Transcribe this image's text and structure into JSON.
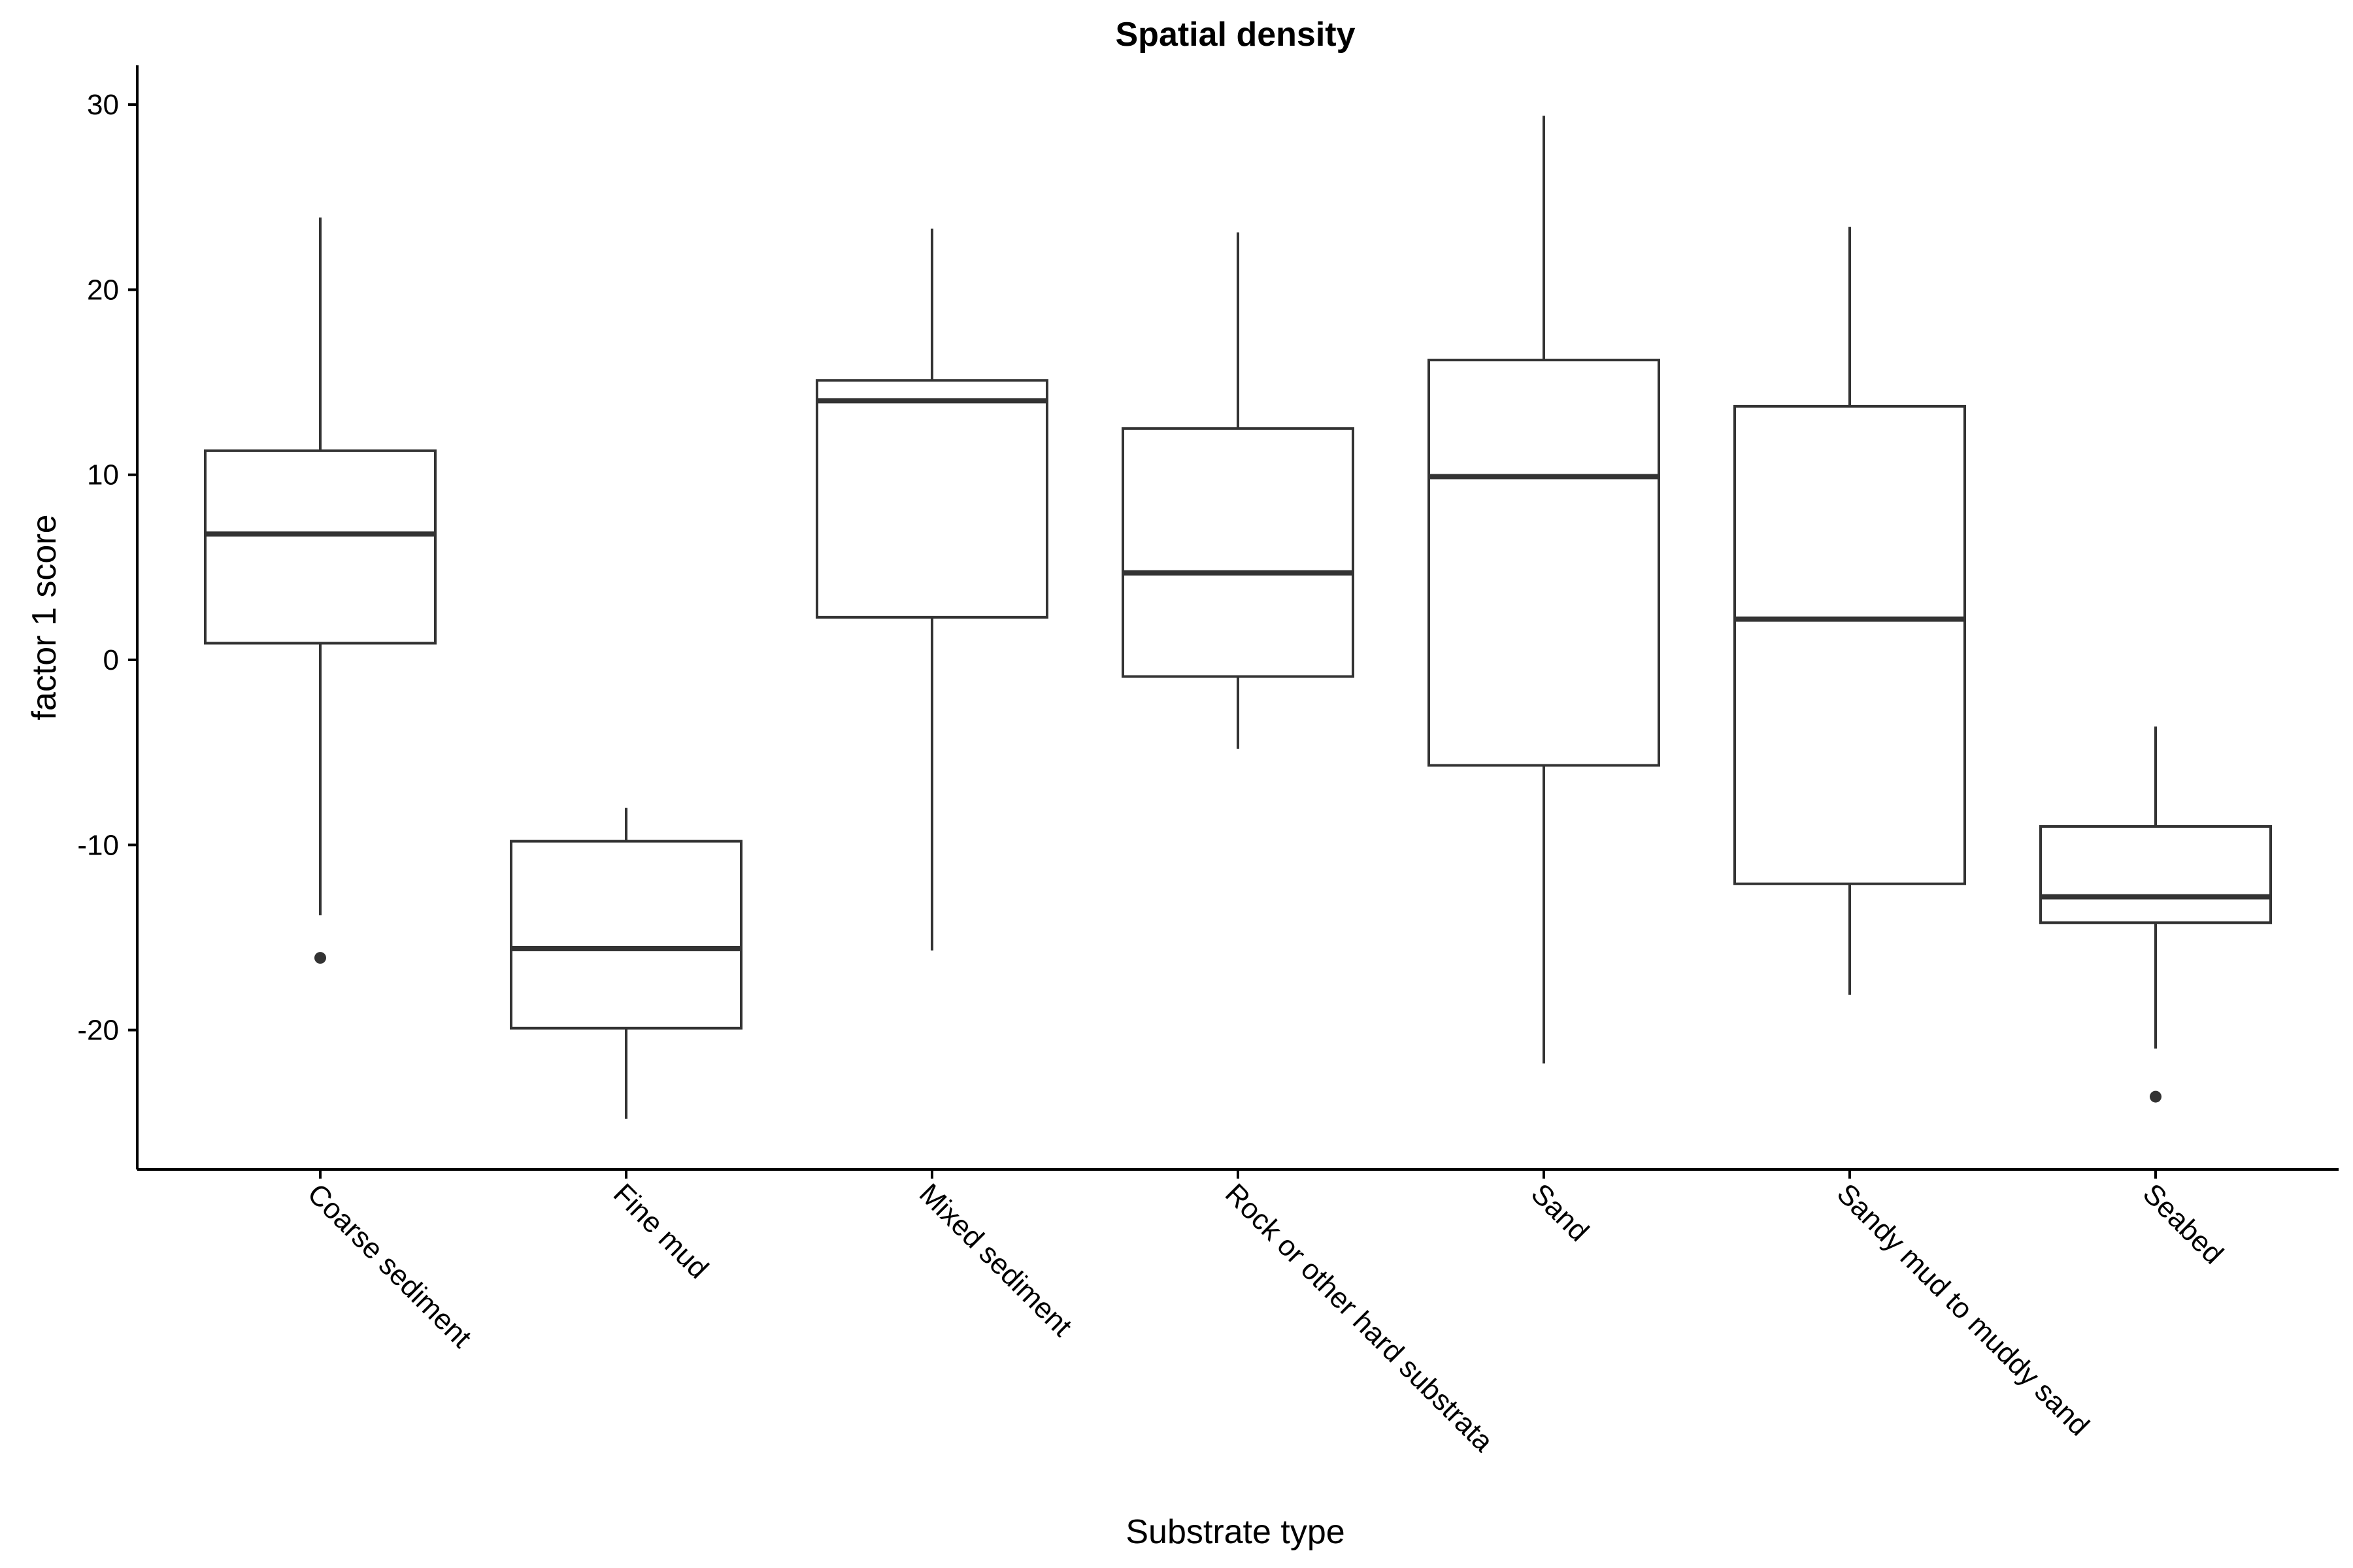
{
  "chart_data": {
    "type": "boxplot",
    "title": "Spatial density",
    "xlabel": "Substrate type",
    "ylabel": "factor 1 score",
    "ylim": [
      -27.5,
      32
    ],
    "yticks": [
      -20,
      -10,
      0,
      10,
      20,
      30
    ],
    "ytick_labels": [
      "-20",
      "-10",
      "0",
      "10",
      "20",
      "30"
    ],
    "categories": [
      "Coarse sediment",
      "Fine mud",
      "Mixed sediment",
      "Rock or other hard substrata",
      "Sand",
      "Sandy mud to muddy sand",
      "Seabed"
    ],
    "boxes": [
      {
        "category": "Coarse sediment",
        "whisker_low": -13.8,
        "q1": 0.9,
        "median": 6.8,
        "q3": 11.3,
        "whisker_high": 23.9,
        "outliers": [
          -16.1
        ]
      },
      {
        "category": "Fine mud",
        "whisker_low": -24.8,
        "q1": -19.9,
        "median": -15.6,
        "q3": -9.8,
        "whisker_high": -8.0,
        "outliers": []
      },
      {
        "category": "Mixed sediment",
        "whisker_low": -15.7,
        "q1": 2.3,
        "median": 14.0,
        "q3": 15.1,
        "whisker_high": 23.3,
        "outliers": []
      },
      {
        "category": "Rock or other hard substrata",
        "whisker_low": -4.8,
        "q1": -0.9,
        "median": 4.7,
        "q3": 12.5,
        "whisker_high": 23.1,
        "outliers": []
      },
      {
        "category": "Sand",
        "whisker_low": -21.8,
        "q1": -5.7,
        "median": 9.9,
        "q3": 16.2,
        "whisker_high": 29.4,
        "outliers": []
      },
      {
        "category": "Sandy mud to muddy sand",
        "whisker_low": -18.1,
        "q1": -12.1,
        "median": 2.2,
        "q3": 13.7,
        "whisker_high": 23.4,
        "outliers": []
      },
      {
        "category": "Seabed",
        "whisker_low": -21.0,
        "q1": -14.2,
        "median": -12.8,
        "q3": -9.0,
        "whisker_high": -3.6,
        "outliers": [
          -23.6
        ]
      }
    ],
    "grid": false,
    "legend": "none"
  }
}
